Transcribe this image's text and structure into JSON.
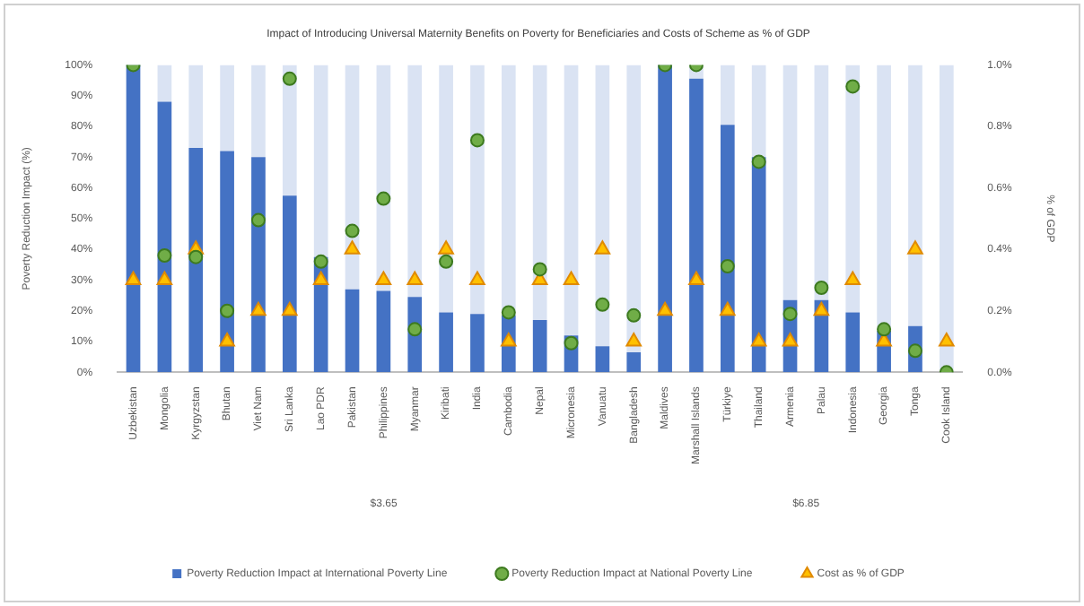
{
  "chart_data": {
    "type": "bar",
    "stacked": true,
    "title": "Impact of Introducing Universal Maternity Benefits on Poverty for Beneficiaries and Costs of Scheme as % of GDP",
    "ylabel": "Poverty Reduction Impact (%)",
    "y2label": "% of GDP",
    "categories": [
      "Uzbekistan",
      "Mongolia",
      "Kyrgyzstan",
      "Bhutan",
      "Viet Nam",
      "Sri Lanka",
      "Lao PDR",
      "Pakistan",
      "Philippines",
      "Myanmar",
      "Kiribati",
      "India",
      "Cambodia",
      "Nepal",
      "Micronesia",
      "Vanuatu",
      "Bangladesh",
      "Maldives",
      "Marshall Islands",
      "Türkiye",
      "Thailand",
      "Armenia",
      "Palau",
      "Indonesia",
      "Georgia",
      "Tonga",
      "Cook Island"
    ],
    "series": [
      {
        "name": "Poverty Reduction Impact at International Poverty Line",
        "color": "#4472c4",
        "values": [
          100,
          88,
          73,
          72,
          70,
          57.5,
          37.5,
          27,
          26.5,
          24.5,
          19.5,
          19,
          18.5,
          17,
          12,
          8.5,
          6.5,
          100,
          95.5,
          80.5,
          70,
          23.5,
          23.5,
          19.5,
          13.5,
          15,
          0
        ]
      },
      {
        "color": "#dae3f3",
        "values": [
          0,
          12,
          27,
          28,
          30,
          42.5,
          62.5,
          73,
          73.5,
          75.5,
          80.5,
          81,
          81.5,
          83,
          88,
          91.5,
          93.5,
          0,
          4.5,
          19.5,
          30,
          76.5,
          76.5,
          80.5,
          86.5,
          85,
          100
        ]
      },
      {
        "name": "Poverty Reduction Impact at National Poverty Line",
        "type": "scatter",
        "marker": "circle",
        "color": "#70ad47",
        "values": [
          100,
          38,
          37.5,
          20,
          49.5,
          95.5,
          36,
          46,
          56.5,
          14,
          36,
          75.5,
          19.5,
          33.5,
          9.5,
          22,
          18.5,
          100,
          100,
          34.5,
          68.5,
          19,
          27.5,
          93,
          14,
          7,
          0
        ]
      },
      {
        "name": "Cost as % of GDP",
        "type": "scatter",
        "marker": "triangle",
        "axis": "y2",
        "color": "#ffc000",
        "values": [
          0.3,
          0.3,
          0.4,
          0.1,
          0.2,
          0.2,
          0.3,
          0.4,
          0.3,
          0.3,
          0.4,
          0.3,
          0.1,
          0.3,
          0.3,
          0.4,
          0.1,
          0.2,
          0.3,
          0.2,
          0.1,
          0.1,
          0.2,
          0.3,
          0.1,
          0.4,
          0.1
        ]
      }
    ],
    "ylim": [
      0,
      100
    ],
    "yticks": [
      {
        "value": 0,
        "label": "0%"
      },
      {
        "value": 10,
        "label": "10%"
      },
      {
        "value": 20,
        "label": "20%"
      },
      {
        "value": 30,
        "label": "30%"
      },
      {
        "value": 40,
        "label": "40%"
      },
      {
        "value": 50,
        "label": "50%"
      },
      {
        "value": 60,
        "label": "60%"
      },
      {
        "value": 70,
        "label": "70%"
      },
      {
        "value": 80,
        "label": "80%"
      },
      {
        "value": 90,
        "label": "90%"
      },
      {
        "value": 100,
        "label": "100%"
      }
    ],
    "y2lim": [
      0,
      1
    ],
    "y2ticks": [
      {
        "value": 0,
        "label": "0.0%"
      },
      {
        "value": 0.2,
        "label": "0.2%"
      },
      {
        "value": 0.4,
        "label": "0.4%"
      },
      {
        "value": 0.6,
        "label": "0.6%"
      },
      {
        "value": 0.8,
        "label": "0.8%"
      },
      {
        "value": 1,
        "label": "1.0%"
      }
    ],
    "annotations": [
      "$3.65",
      "$6.85"
    ],
    "grid": false,
    "legend": "bottom"
  }
}
